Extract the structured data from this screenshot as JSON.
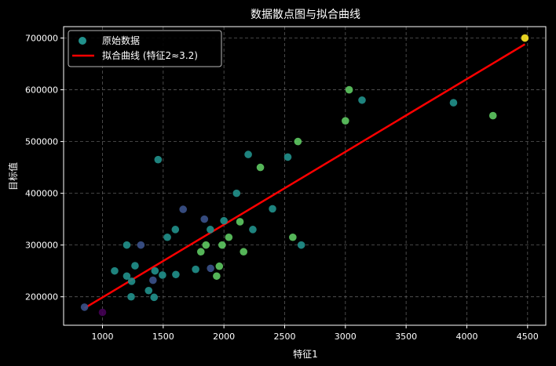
{
  "chart_data": {
    "type": "scatter",
    "title": "数据散点图与拟合曲线",
    "xlabel": "特征1",
    "ylabel": "目标值",
    "xlim": [
      680,
      4650
    ],
    "ylim": [
      145000,
      722000
    ],
    "xticks": [
      1000,
      1500,
      2000,
      2500,
      3000,
      3500,
      4000,
      4500
    ],
    "yticks": [
      200000,
      300000,
      400000,
      500000,
      600000,
      700000
    ],
    "grid": true,
    "legend_position": "top-left",
    "legend": {
      "scatter_label": "原始数据",
      "line_label": "拟合曲线 (特征2≈3.2)"
    },
    "colors": {
      "background": "#000000",
      "fit_line": "#ff0000",
      "grid": "#5a5a5a",
      "axis": "#ffffff"
    },
    "series": [
      {
        "name": "原始数据",
        "points": [
          {
            "x": 852,
            "y": 180000,
            "color": "#3b528b"
          },
          {
            "x": 1000,
            "y": 170000,
            "color": "#440154"
          },
          {
            "x": 1100,
            "y": 250000,
            "color": "#21918c"
          },
          {
            "x": 1200,
            "y": 300000,
            "color": "#21918c"
          },
          {
            "x": 1200,
            "y": 240000,
            "color": "#21918c"
          },
          {
            "x": 1236,
            "y": 200000,
            "color": "#21918c"
          },
          {
            "x": 1240,
            "y": 230000,
            "color": "#21918c"
          },
          {
            "x": 1268,
            "y": 260000,
            "color": "#21918c"
          },
          {
            "x": 1316,
            "y": 300000,
            "color": "#3b528b"
          },
          {
            "x": 1380,
            "y": 212000,
            "color": "#21918c"
          },
          {
            "x": 1416,
            "y": 232000,
            "color": "#3b528b"
          },
          {
            "x": 1425,
            "y": 199000,
            "color": "#21918c"
          },
          {
            "x": 1432,
            "y": 250000,
            "color": "#21918c"
          },
          {
            "x": 1458,
            "y": 465000,
            "color": "#21918c"
          },
          {
            "x": 1494,
            "y": 242000,
            "color": "#21918c"
          },
          {
            "x": 1534,
            "y": 315000,
            "color": "#21918c"
          },
          {
            "x": 1600,
            "y": 330000,
            "color": "#21918c"
          },
          {
            "x": 1604,
            "y": 243000,
            "color": "#21918c"
          },
          {
            "x": 1664,
            "y": 369000,
            "color": "#3b528b"
          },
          {
            "x": 1767,
            "y": 253000,
            "color": "#21918c"
          },
          {
            "x": 1810,
            "y": 287000,
            "color": "#5ec962"
          },
          {
            "x": 1839,
            "y": 350000,
            "color": "#3b528b"
          },
          {
            "x": 1852,
            "y": 300000,
            "color": "#5ec962"
          },
          {
            "x": 1888,
            "y": 330000,
            "color": "#21918c"
          },
          {
            "x": 1890,
            "y": 255000,
            "color": "#3b528b"
          },
          {
            "x": 1940,
            "y": 240000,
            "color": "#5ec962"
          },
          {
            "x": 1962,
            "y": 259000,
            "color": "#5ec962"
          },
          {
            "x": 1985,
            "y": 300000,
            "color": "#5ec962"
          },
          {
            "x": 2000,
            "y": 347000,
            "color": "#21918c"
          },
          {
            "x": 2040,
            "y": 315000,
            "color": "#5ec962"
          },
          {
            "x": 2104,
            "y": 400000,
            "color": "#21918c"
          },
          {
            "x": 2132,
            "y": 345000,
            "color": "#5ec962"
          },
          {
            "x": 2162,
            "y": 287000,
            "color": "#5ec962"
          },
          {
            "x": 2200,
            "y": 475000,
            "color": "#21918c"
          },
          {
            "x": 2238,
            "y": 330000,
            "color": "#21918c"
          },
          {
            "x": 2300,
            "y": 450000,
            "color": "#5ec962"
          },
          {
            "x": 2400,
            "y": 370000,
            "color": "#21918c"
          },
          {
            "x": 2526,
            "y": 470000,
            "color": "#21918c"
          },
          {
            "x": 2567,
            "y": 315000,
            "color": "#5ec962"
          },
          {
            "x": 2609,
            "y": 500000,
            "color": "#5ec962"
          },
          {
            "x": 2637,
            "y": 300000,
            "color": "#21918c"
          },
          {
            "x": 3000,
            "y": 540000,
            "color": "#5ec962"
          },
          {
            "x": 3031,
            "y": 600000,
            "color": "#5ec962"
          },
          {
            "x": 3137,
            "y": 580000,
            "color": "#21918c"
          },
          {
            "x": 3890,
            "y": 575000,
            "color": "#21918c"
          },
          {
            "x": 4215,
            "y": 550000,
            "color": "#5ec962"
          },
          {
            "x": 4478,
            "y": 700000,
            "color": "#fde725"
          }
        ]
      },
      {
        "name": "拟合曲线 (特征2≈3.2)",
        "type": "line",
        "x": [
          852,
          4478
        ],
        "y": [
          178000,
          688000
        ]
      }
    ]
  }
}
